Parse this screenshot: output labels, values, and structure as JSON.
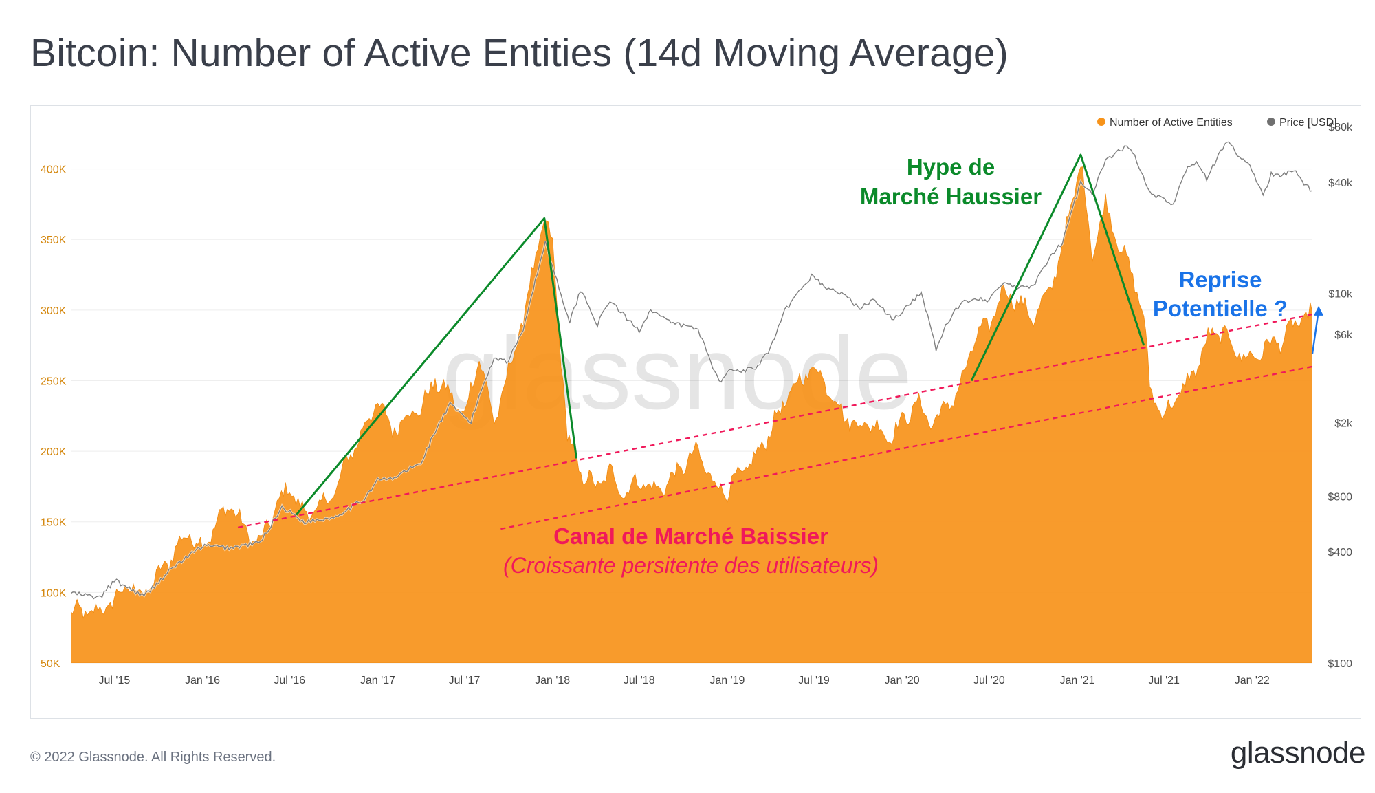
{
  "title": "Bitcoin: Number of Active Entities (14d Moving Average)",
  "footer": {
    "copyright": "© 2022 Glassnode. All Rights Reserved.",
    "brand": "glassnode"
  },
  "watermark": "glassnode",
  "colors": {
    "entities": "#f7931a",
    "price": "#808080",
    "bull_lines": "#0b8a2a",
    "channel": "#f0195a",
    "reprise": "#1a73e8",
    "left_axis": "#d4860b",
    "grid": "#eeeeee"
  },
  "annotations": {
    "hype_line1": "Hype de",
    "hype_line2": "Marché Haussier",
    "reprise_line1": "Reprise",
    "reprise_line2": "Potentielle ?",
    "canal_title": "Canal de Marché Baissier",
    "canal_subtitle": "(Croissante persitente des utilisateurs)"
  },
  "chart_data": {
    "type": "area",
    "x_ticks": [
      "Jul '15",
      "Jan '16",
      "Jul '16",
      "Jan '17",
      "Jul '17",
      "Jan '18",
      "Jul '18",
      "Jan '19",
      "Jul '19",
      "Jan '20",
      "Jul '20",
      "Jan '21",
      "Jul '21",
      "Jan '22"
    ],
    "x_range": [
      "2015-04-01",
      "2022-05-07"
    ],
    "y_left": {
      "ticks": [
        "50K",
        "100K",
        "150K",
        "200K",
        "250K",
        "300K",
        "350K",
        "400K"
      ],
      "range": [
        50000,
        430000
      ]
    },
    "y_right": {
      "scale": "log",
      "ticks": [
        "$100",
        "$400",
        "$800",
        "$2k",
        "$6k",
        "$10k",
        "$40k",
        "$80k"
      ],
      "range": [
        100,
        80000
      ]
    },
    "legend": {
      "position": "top-right"
    },
    "series": [
      {
        "name": "Number of Active Entities",
        "axis": "left",
        "points": [
          [
            "2015-04-01",
            86000
          ],
          [
            "2015-06-01",
            86000
          ],
          [
            "2015-07-01",
            95000
          ],
          [
            "2015-08-01",
            105000
          ],
          [
            "2015-09-01",
            98000
          ],
          [
            "2015-10-01",
            112000
          ],
          [
            "2015-11-01",
            128000
          ],
          [
            "2015-12-01",
            142000
          ],
          [
            "2016-01-01",
            132000
          ],
          [
            "2016-02-01",
            150000
          ],
          [
            "2016-03-01",
            163000
          ],
          [
            "2016-04-01",
            142000
          ],
          [
            "2016-05-01",
            135000
          ],
          [
            "2016-06-01",
            160000
          ],
          [
            "2016-07-01",
            175000
          ],
          [
            "2016-08-01",
            155000
          ],
          [
            "2016-09-01",
            160000
          ],
          [
            "2016-10-01",
            170000
          ],
          [
            "2016-11-01",
            195000
          ],
          [
            "2016-12-01",
            215000
          ],
          [
            "2017-01-01",
            235000
          ],
          [
            "2017-02-01",
            215000
          ],
          [
            "2017-03-01",
            225000
          ],
          [
            "2017-04-01",
            230000
          ],
          [
            "2017-05-01",
            250000
          ],
          [
            "2017-06-01",
            240000
          ],
          [
            "2017-07-01",
            225000
          ],
          [
            "2017-08-01",
            268000
          ],
          [
            "2017-09-01",
            220000
          ],
          [
            "2017-10-01",
            255000
          ],
          [
            "2017-11-01",
            295000
          ],
          [
            "2017-12-15",
            365000
          ],
          [
            "2018-01-01",
            345000
          ],
          [
            "2018-02-01",
            210000
          ],
          [
            "2018-03-01",
            185000
          ],
          [
            "2018-04-01",
            175000
          ],
          [
            "2018-05-01",
            185000
          ],
          [
            "2018-06-01",
            170000
          ],
          [
            "2018-07-01",
            180000
          ],
          [
            "2018-08-01",
            172000
          ],
          [
            "2018-09-01",
            178000
          ],
          [
            "2018-10-01",
            190000
          ],
          [
            "2018-11-01",
            200000
          ],
          [
            "2018-12-01",
            178000
          ],
          [
            "2019-01-01",
            172000
          ],
          [
            "2019-02-01",
            185000
          ],
          [
            "2019-03-01",
            195000
          ],
          [
            "2019-04-01",
            215000
          ],
          [
            "2019-05-01",
            235000
          ],
          [
            "2019-06-01",
            250000
          ],
          [
            "2019-07-01",
            260000
          ],
          [
            "2019-08-01",
            245000
          ],
          [
            "2019-09-01",
            225000
          ],
          [
            "2019-10-01",
            218000
          ],
          [
            "2019-11-01",
            220000
          ],
          [
            "2019-12-01",
            210000
          ],
          [
            "2020-01-01",
            220000
          ],
          [
            "2020-02-01",
            235000
          ],
          [
            "2020-03-01",
            220000
          ],
          [
            "2020-04-01",
            230000
          ],
          [
            "2020-05-01",
            245000
          ],
          [
            "2020-06-01",
            280000
          ],
          [
            "2020-07-01",
            290000
          ],
          [
            "2020-08-01",
            315000
          ],
          [
            "2020-09-01",
            305000
          ],
          [
            "2020-10-01",
            295000
          ],
          [
            "2020-11-01",
            310000
          ],
          [
            "2020-12-01",
            345000
          ],
          [
            "2021-01-08",
            405000
          ],
          [
            "2021-02-01",
            340000
          ],
          [
            "2021-03-01",
            375000
          ],
          [
            "2021-04-01",
            345000
          ],
          [
            "2021-05-01",
            320000
          ],
          [
            "2021-05-20",
            295000
          ],
          [
            "2021-06-01",
            245000
          ],
          [
            "2021-07-01",
            225000
          ],
          [
            "2021-08-01",
            240000
          ],
          [
            "2021-09-01",
            255000
          ],
          [
            "2021-10-01",
            280000
          ],
          [
            "2021-11-01",
            285000
          ],
          [
            "2021-12-01",
            270000
          ],
          [
            "2022-01-01",
            265000
          ],
          [
            "2022-02-01",
            275000
          ],
          [
            "2022-03-01",
            278000
          ],
          [
            "2022-04-01",
            290000
          ],
          [
            "2022-05-07",
            298000
          ]
        ]
      },
      {
        "name": "Price [USD]",
        "axis": "right",
        "points": [
          [
            "2015-04-01",
            240
          ],
          [
            "2015-06-01",
            225
          ],
          [
            "2015-07-01",
            280
          ],
          [
            "2015-09-01",
            230
          ],
          [
            "2015-11-01",
            330
          ],
          [
            "2016-01-01",
            430
          ],
          [
            "2016-03-01",
            420
          ],
          [
            "2016-05-01",
            450
          ],
          [
            "2016-06-15",
            700
          ],
          [
            "2016-08-01",
            580
          ],
          [
            "2016-10-01",
            615
          ],
          [
            "2016-12-01",
            760
          ],
          [
            "2017-01-01",
            980
          ],
          [
            "2017-02-01",
            990
          ],
          [
            "2017-03-01",
            1100
          ],
          [
            "2017-04-01",
            1200
          ],
          [
            "2017-05-01",
            1800
          ],
          [
            "2017-06-01",
            2500
          ],
          [
            "2017-07-15",
            2000
          ],
          [
            "2017-08-01",
            2800
          ],
          [
            "2017-09-01",
            4500
          ],
          [
            "2017-10-01",
            4300
          ],
          [
            "2017-11-01",
            6500
          ],
          [
            "2017-12-17",
            19000
          ],
          [
            "2018-01-01",
            14000
          ],
          [
            "2018-02-06",
            7000
          ],
          [
            "2018-03-01",
            10500
          ],
          [
            "2018-04-05",
            6800
          ],
          [
            "2018-05-01",
            9200
          ],
          [
            "2018-06-01",
            7500
          ],
          [
            "2018-07-01",
            6300
          ],
          [
            "2018-07-25",
            8200
          ],
          [
            "2018-09-01",
            7000
          ],
          [
            "2018-11-01",
            6400
          ],
          [
            "2018-12-15",
            3300
          ],
          [
            "2019-01-01",
            3800
          ],
          [
            "2019-03-01",
            3900
          ],
          [
            "2019-04-01",
            5000
          ],
          [
            "2019-05-01",
            8000
          ],
          [
            "2019-06-26",
            12500
          ],
          [
            "2019-08-01",
            10500
          ],
          [
            "2019-09-01",
            10000
          ],
          [
            "2019-10-01",
            8300
          ],
          [
            "2019-11-01",
            9200
          ],
          [
            "2019-12-15",
            7200
          ],
          [
            "2020-02-10",
            10200
          ],
          [
            "2020-03-12",
            5000
          ],
          [
            "2020-04-01",
            6600
          ],
          [
            "2020-05-01",
            8800
          ],
          [
            "2020-06-01",
            9500
          ],
          [
            "2020-07-01",
            9200
          ],
          [
            "2020-08-01",
            11500
          ],
          [
            "2020-09-01",
            10600
          ],
          [
            "2020-10-01",
            11000
          ],
          [
            "2020-11-01",
            15000
          ],
          [
            "2020-12-01",
            19000
          ],
          [
            "2021-01-08",
            40000
          ],
          [
            "2021-02-01",
            35000
          ],
          [
            "2021-03-01",
            52000
          ],
          [
            "2021-04-14",
            63000
          ],
          [
            "2021-05-01",
            55000
          ],
          [
            "2021-06-01",
            35000
          ],
          [
            "2021-07-20",
            30000
          ],
          [
            "2021-08-15",
            46000
          ],
          [
            "2021-09-07",
            52000
          ],
          [
            "2021-09-28",
            42000
          ],
          [
            "2021-11-09",
            67000
          ],
          [
            "2021-12-01",
            57000
          ],
          [
            "2022-01-01",
            47000
          ],
          [
            "2022-01-24",
            34000
          ],
          [
            "2022-02-10",
            44000
          ],
          [
            "2022-03-01",
            43000
          ],
          [
            "2022-03-29",
            47000
          ],
          [
            "2022-04-15",
            40000
          ],
          [
            "2022-05-07",
            36000
          ]
        ]
      }
    ],
    "trend_lines": [
      {
        "kind": "bull_hype",
        "points": [
          [
            "2016-07-15",
            155000
          ],
          [
            "2017-12-15",
            365000
          ],
          [
            "2018-02-20",
            195000
          ]
        ]
      },
      {
        "kind": "bull_hype",
        "points": [
          [
            "2020-05-25",
            250000
          ],
          [
            "2021-01-08",
            410000
          ],
          [
            "2021-05-20",
            275000
          ]
        ]
      },
      {
        "kind": "channel_upper",
        "points": [
          [
            "2016-03-15",
            146000
          ],
          [
            "2022-05-07",
            297000
          ]
        ]
      },
      {
        "kind": "channel_lower",
        "points": [
          [
            "2017-09-15",
            145000
          ],
          [
            "2022-05-07",
            260000
          ]
        ]
      },
      {
        "kind": "recovery_arrow",
        "points": [
          [
            "2022-05-07",
            275000
          ],
          [
            "2022-05-20",
            300000
          ]
        ]
      }
    ]
  }
}
